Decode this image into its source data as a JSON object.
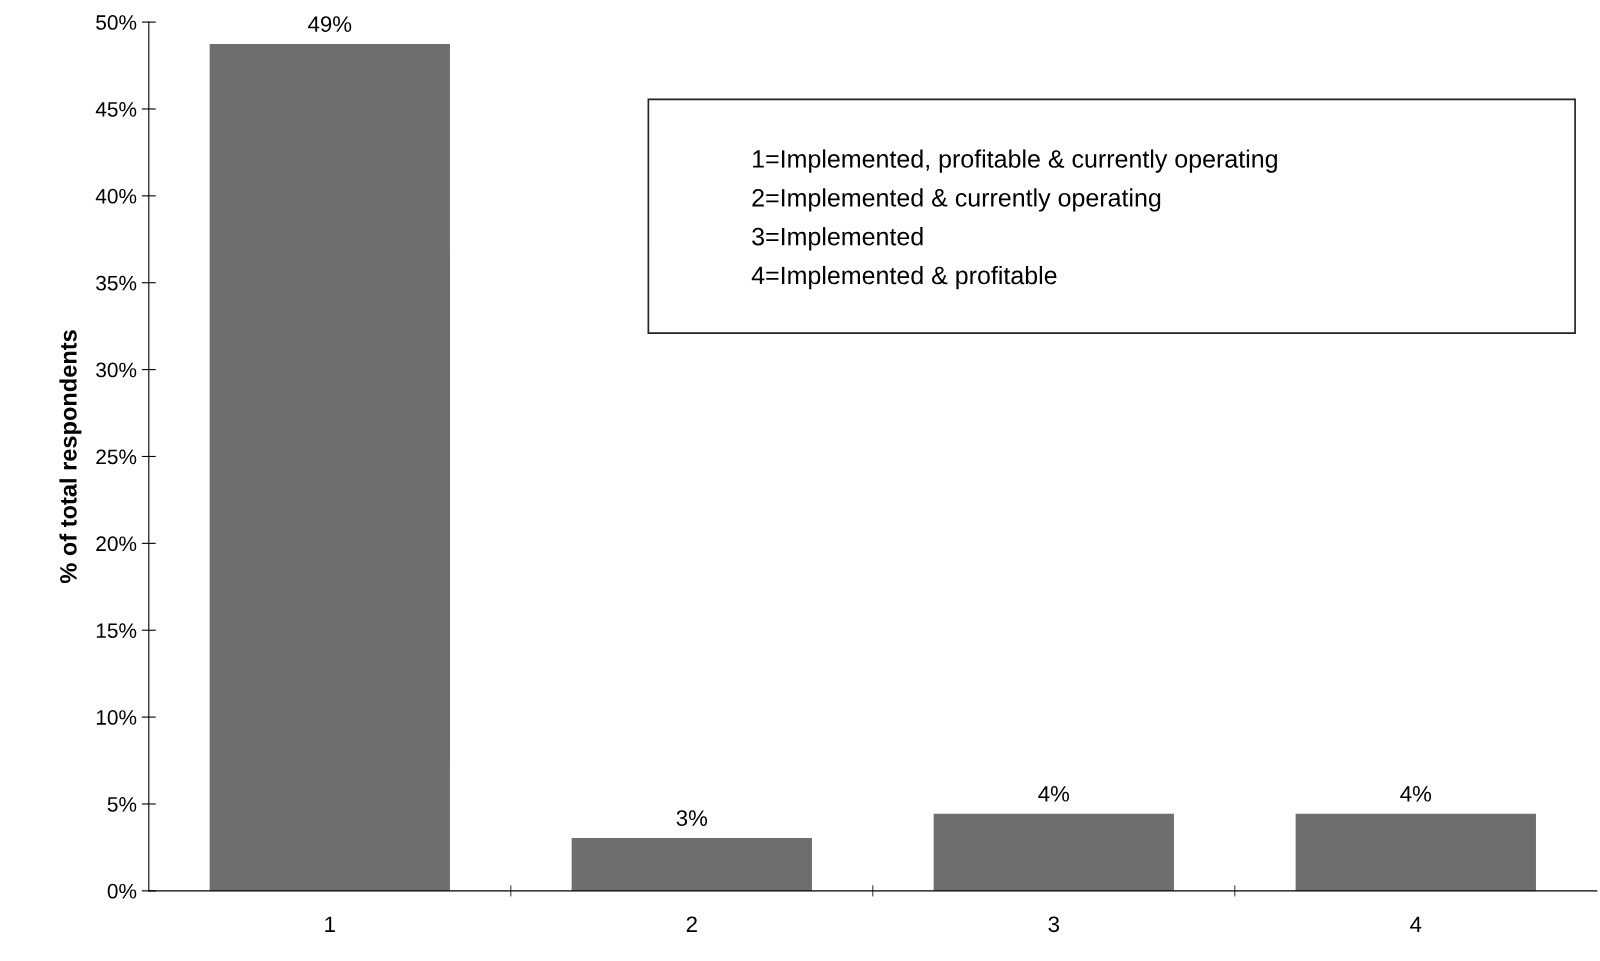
{
  "chart_data": {
    "type": "bar",
    "ylabel": "% of total respondents",
    "categories": [
      "1",
      "2",
      "3",
      "4"
    ],
    "values": [
      48.7,
      3.0,
      4.4,
      4.4
    ],
    "value_labels": [
      "49%",
      "3%",
      "4%",
      "4%"
    ],
    "color": "#6e6e6e",
    "ylim": [
      0,
      50
    ],
    "yticks": [
      {
        "value": 0,
        "label": "0%"
      },
      {
        "value": 5,
        "label": "5%"
      },
      {
        "value": 10,
        "label": "10%"
      },
      {
        "value": 15,
        "label": "15%"
      },
      {
        "value": 20,
        "label": "20%"
      },
      {
        "value": 25,
        "label": "25%"
      },
      {
        "value": 30,
        "label": "30%"
      },
      {
        "value": 35,
        "label": "35%"
      },
      {
        "value": 40,
        "label": "40%"
      },
      {
        "value": 45,
        "label": "45%"
      },
      {
        "value": 50,
        "label": "50%"
      }
    ],
    "annotations": [
      "1=Implemented, profitable & currently operating",
      "2=Implemented & currently operating",
      "3=Implemented",
      "4=Implemented & profitable"
    ]
  }
}
